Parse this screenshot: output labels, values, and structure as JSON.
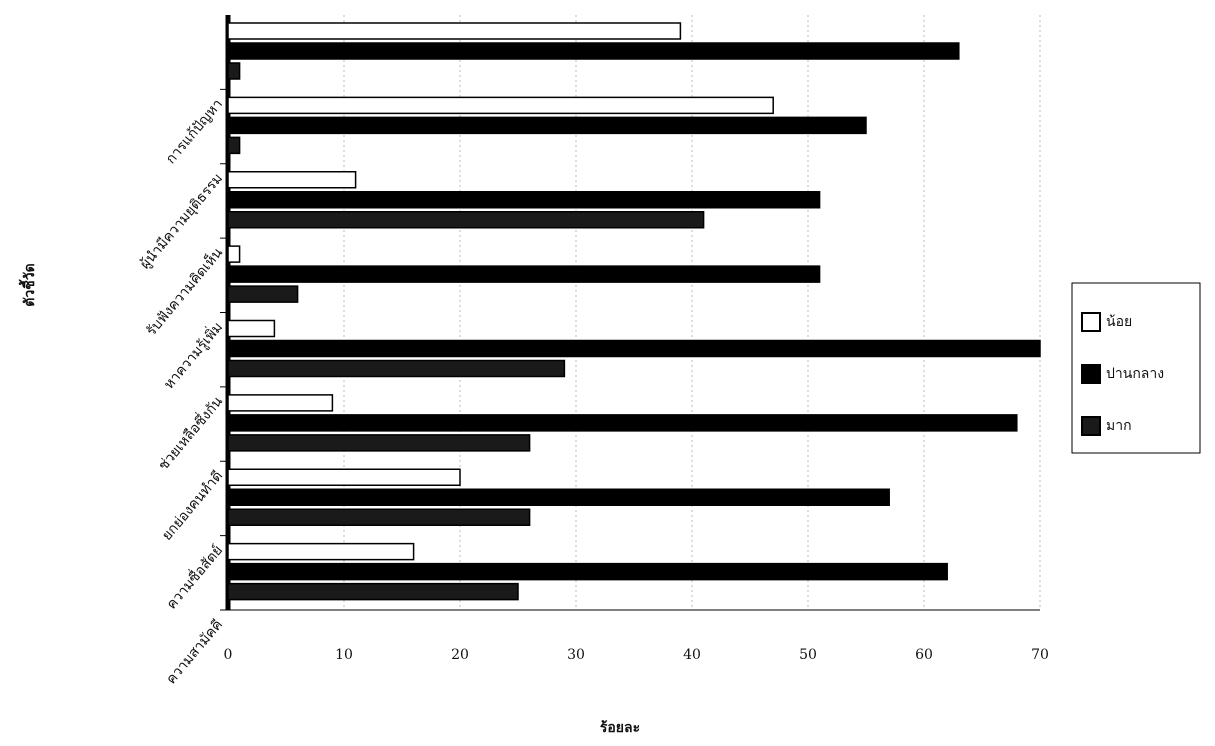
{
  "chart_data": {
    "type": "bar",
    "orientation": "horizontal",
    "x_label": "ร้อยละ",
    "y_label": "ตัวชี้วัด",
    "categories": [
      "ความสามัคคี",
      "ความซื่อสัตย์",
      "ยกย่องคนทำดี",
      "ช่วยเหลือซึ่งกัน",
      "หาความรู้เพิ่ม",
      "รับฟังความคิดเห็น",
      "ผู้นำมีความยุติธรรม",
      "การแก้ปัญหา"
    ],
    "series": [
      {
        "name": "น้อย",
        "color": "#ffffff",
        "values": [
          16,
          20,
          9,
          4,
          1,
          11,
          47,
          39
        ]
      },
      {
        "name": "ปานกลาง",
        "color": "#000000",
        "values": [
          62,
          57,
          68,
          70,
          51,
          51,
          55,
          63
        ]
      },
      {
        "name": "มาก",
        "color": "#1a1a1a",
        "values": [
          25,
          26,
          26,
          29,
          6,
          41,
          1,
          1
        ]
      }
    ],
    "xlim": [
      0,
      70
    ],
    "xticks": [
      0,
      10,
      20,
      30,
      40,
      50,
      60,
      70
    ],
    "grid": true,
    "legend": "right"
  }
}
